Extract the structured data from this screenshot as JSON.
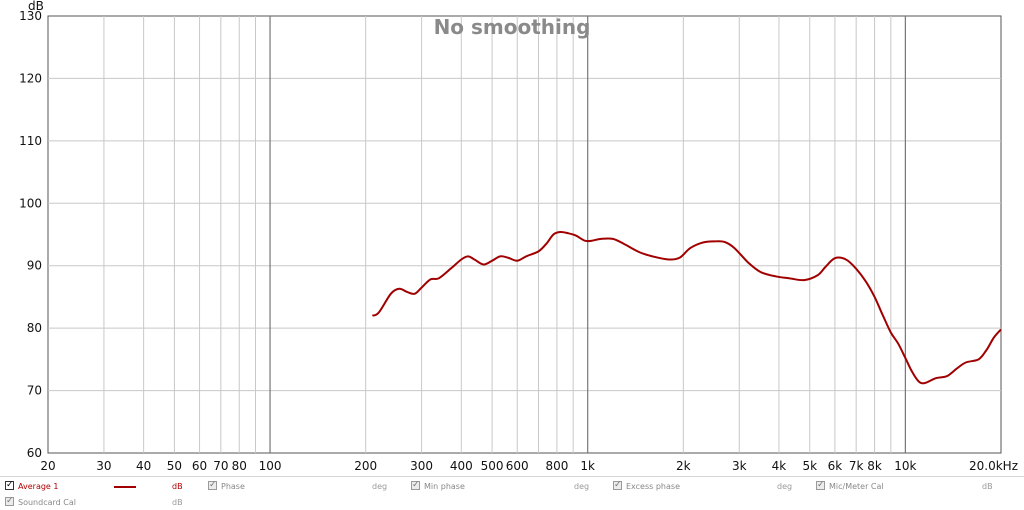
{
  "chart_data": {
    "type": "line",
    "title": "No smoothing",
    "ylabel": "dB",
    "xunit": "kHz",
    "xscale": "log",
    "xlim": [
      20,
      20000
    ],
    "ylim": [
      60,
      130
    ],
    "grid": true,
    "y_ticks": [
      60,
      70,
      80,
      90,
      100,
      110,
      120,
      130
    ],
    "x_ticks": [
      {
        "value": 20,
        "label": "20"
      },
      {
        "value": 30,
        "label": "30"
      },
      {
        "value": 40,
        "label": "40"
      },
      {
        "value": 50,
        "label": "50"
      },
      {
        "value": 60,
        "label": "60"
      },
      {
        "value": 70,
        "label": "70"
      },
      {
        "value": 80,
        "label": "80"
      },
      {
        "value": 100,
        "label": "100"
      },
      {
        "value": 200,
        "label": "200"
      },
      {
        "value": 300,
        "label": "300"
      },
      {
        "value": 400,
        "label": "400"
      },
      {
        "value": 500,
        "label": "500"
      },
      {
        "value": 600,
        "label": "600"
      },
      {
        "value": 800,
        "label": "800"
      },
      {
        "value": 1000,
        "label": "1k"
      },
      {
        "value": 2000,
        "label": "2k"
      },
      {
        "value": 3000,
        "label": "3k"
      },
      {
        "value": 4000,
        "label": "4k"
      },
      {
        "value": 5000,
        "label": "5k"
      },
      {
        "value": 6000,
        "label": "6k"
      },
      {
        "value": 7000,
        "label": "7k"
      },
      {
        "value": 8000,
        "label": "8k"
      },
      {
        "value": 10000,
        "label": "10k"
      },
      {
        "value": 20000,
        "label": "20.0kHz"
      }
    ],
    "minor_x_ticks": [
      90,
      700,
      900,
      9000
    ],
    "series": [
      {
        "name": "Average 1",
        "color": "#a00000",
        "x": [
          210,
          220,
          240,
          255,
          270,
          285,
          300,
          320,
          340,
          370,
          400,
          420,
          440,
          470,
          500,
          530,
          560,
          600,
          640,
          700,
          740,
          780,
          820,
          870,
          920,
          980,
          1030,
          1100,
          1200,
          1300,
          1450,
          1600,
          1800,
          1950,
          2100,
          2300,
          2500,
          2700,
          2900,
          3200,
          3500,
          3900,
          4300,
          4800,
          5300,
          5600,
          6000,
          6500,
          7000,
          7500,
          8000,
          8500,
          9000,
          9500,
          10000,
          10500,
          11000,
          11500,
          12500,
          13500,
          14500,
          15500,
          17000,
          18000,
          19000,
          20000
        ],
        "values": [
          82,
          82.5,
          85.5,
          86.3,
          85.8,
          85.5,
          86.5,
          87.8,
          88.0,
          89.5,
          91.0,
          91.5,
          91.0,
          90.2,
          90.8,
          91.5,
          91.3,
          90.8,
          91.5,
          92.3,
          93.5,
          95.0,
          95.4,
          95.2,
          94.8,
          94.0,
          94.0,
          94.3,
          94.3,
          93.5,
          92.2,
          91.5,
          91.0,
          91.3,
          92.8,
          93.7,
          93.9,
          93.8,
          92.8,
          90.5,
          89.0,
          88.3,
          88.0,
          87.7,
          88.5,
          89.8,
          91.2,
          91.0,
          89.5,
          87.5,
          85.0,
          82.0,
          79.3,
          77.5,
          75.2,
          73.0,
          71.5,
          71.2,
          72.0,
          72.3,
          73.5,
          74.5,
          75.0,
          76.5,
          78.5,
          79.8
        ]
      }
    ]
  },
  "legend": [
    {
      "label": "Average 1",
      "unit": "dB",
      "checked": true,
      "active": true
    },
    {
      "label": "Phase",
      "unit": "deg",
      "checked": true,
      "active": false
    },
    {
      "label": "Min phase",
      "unit": "deg",
      "checked": true,
      "active": false
    },
    {
      "label": "Excess phase",
      "unit": "deg",
      "checked": true,
      "active": false
    },
    {
      "label": "Mic/Meter Cal",
      "unit": "dB",
      "checked": true,
      "active": false
    },
    {
      "label": "Soundcard Cal",
      "unit": "dB",
      "checked": true,
      "active": false
    }
  ]
}
